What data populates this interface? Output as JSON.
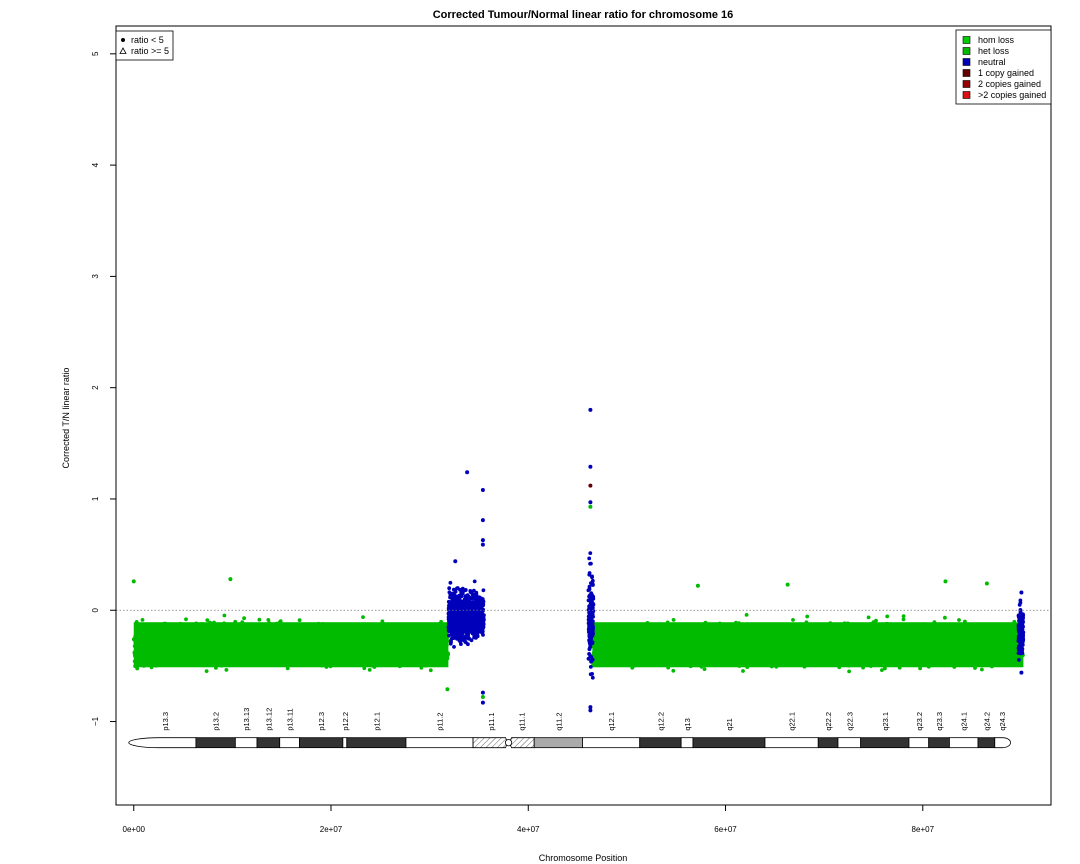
{
  "chart_data": {
    "type": "scatter",
    "title": "Corrected Tumour/Normal linear ratio for chromosome  16",
    "xlabel": "Chromosome Position",
    "ylabel": "Corrected T/N linear ratio",
    "xlim": [
      -1800000,
      93000000
    ],
    "ylim": [
      -1.75,
      5.25
    ],
    "x_ticks": [
      {
        "value": 0,
        "label": "0e+00"
      },
      {
        "value": 20000000,
        "label": "2e+07"
      },
      {
        "value": 40000000,
        "label": "4e+07"
      },
      {
        "value": 60000000,
        "label": "6e+07"
      },
      {
        "value": 80000000,
        "label": "8e+07"
      }
    ],
    "y_ticks": [
      {
        "value": -1,
        "label": "−1"
      },
      {
        "value": 0,
        "label": "0"
      },
      {
        "value": 1,
        "label": "1"
      },
      {
        "value": 2,
        "label": "2"
      },
      {
        "value": 3,
        "label": "3"
      },
      {
        "value": 4,
        "label": "4"
      },
      {
        "value": 5,
        "label": "5"
      }
    ],
    "reference_line": {
      "y": 0,
      "style": "dotted"
    },
    "grid": false,
    "shape_legend": {
      "position": "top-left",
      "items": [
        {
          "symbol": "dot",
          "label": "ratio < 5"
        },
        {
          "symbol": "triangle",
          "label": "ratio >= 5"
        }
      ]
    },
    "color_legend": {
      "position": "top-right",
      "items": [
        {
          "label": "hom loss",
          "color": "#00cc00"
        },
        {
          "label": "het loss",
          "color": "#00bb00"
        },
        {
          "label": "neutral",
          "color": "#0000bb"
        },
        {
          "label": "1 copy gained",
          "color": "#660000"
        },
        {
          "label": "2 copies gained",
          "color": "#990000"
        },
        {
          "label": ">2 copies gained",
          "color": "#dd1111"
        }
      ]
    },
    "series": [
      {
        "name": "het loss",
        "color": "#00bb00",
        "x_start": 0,
        "x_end": 31900000,
        "y_center": -0.31,
        "y_spread": 0.27,
        "note": "dense band"
      },
      {
        "name": "het loss",
        "color": "#00bb00",
        "x_start": 46500000,
        "x_end": 90200000,
        "y_center": -0.31,
        "y_spread": 0.27,
        "note": "dense band"
      },
      {
        "name": "neutral",
        "color": "#0000bb",
        "x_start": 31900000,
        "x_end": 35500000,
        "y_center": -0.05,
        "y_spread": 0.35
      },
      {
        "name": "neutral",
        "color": "#0000bb",
        "x_start": 46100000,
        "x_end": 46600000,
        "y_center": -0.05,
        "y_spread": 0.8
      },
      {
        "name": "neutral",
        "color": "#0000bb",
        "x_start": 89700000,
        "x_end": 90200000,
        "y_center": -0.2,
        "y_spread": 0.35
      }
    ],
    "notable_points": [
      {
        "x": 0,
        "y": 0.26,
        "color": "#00bb00"
      },
      {
        "x": 9800000,
        "y": 0.28,
        "color": "#00bb00"
      },
      {
        "x": 31800000,
        "y": -0.71,
        "color": "#00bb00"
      },
      {
        "x": 32600000,
        "y": 0.44,
        "color": "#0000bb"
      },
      {
        "x": 33800000,
        "y": 1.24,
        "color": "#0000bb"
      },
      {
        "x": 35400000,
        "y": 1.08,
        "color": "#0000bb"
      },
      {
        "x": 35400000,
        "y": 0.81,
        "color": "#0000bb"
      },
      {
        "x": 35400000,
        "y": 0.63,
        "color": "#0000bb"
      },
      {
        "x": 35400000,
        "y": 0.59,
        "color": "#0000bb"
      },
      {
        "x": 35400000,
        "y": -0.74,
        "color": "#0000bb"
      },
      {
        "x": 35400000,
        "y": -0.83,
        "color": "#0000bb"
      },
      {
        "x": 35400000,
        "y": -0.78,
        "color": "#00bb00"
      },
      {
        "x": 46300000,
        "y": 1.8,
        "color": "#0000bb"
      },
      {
        "x": 46300000,
        "y": 1.29,
        "color": "#0000bb"
      },
      {
        "x": 46300000,
        "y": 1.12,
        "color": "#660000"
      },
      {
        "x": 46300000,
        "y": 0.97,
        "color": "#0000bb"
      },
      {
        "x": 46300000,
        "y": 0.93,
        "color": "#00bb00"
      },
      {
        "x": 46300000,
        "y": -0.87,
        "color": "#0000bb"
      },
      {
        "x": 46300000,
        "y": -0.9,
        "color": "#0000bb"
      },
      {
        "x": 57200000,
        "y": 0.22,
        "color": "#00bb00"
      },
      {
        "x": 66300000,
        "y": 0.23,
        "color": "#00bb00"
      },
      {
        "x": 82300000,
        "y": 0.26,
        "color": "#00bb00"
      },
      {
        "x": 86500000,
        "y": 0.24,
        "color": "#00bb00"
      },
      {
        "x": 90000000,
        "y": 0.16,
        "color": "#0000bb"
      },
      {
        "x": 90000000,
        "y": -0.56,
        "color": "#0000bb"
      }
    ],
    "ideogram": {
      "y": -1.19,
      "centromere_x": 38000000,
      "bands": [
        {
          "name": "p13.3",
          "start": 0,
          "end": 6300000,
          "stain": "gneg"
        },
        {
          "name": "p13.2",
          "start": 6300000,
          "end": 10300000,
          "stain": "gpos50"
        },
        {
          "name": "p13.13",
          "start": 10300000,
          "end": 12500000,
          "stain": "gneg"
        },
        {
          "name": "p13.12",
          "start": 12500000,
          "end": 14800000,
          "stain": "gpos50"
        },
        {
          "name": "p13.11",
          "start": 14800000,
          "end": 16800000,
          "stain": "gneg"
        },
        {
          "name": "p12.3",
          "start": 16800000,
          "end": 21200000,
          "stain": "gpos50"
        },
        {
          "name": "p12.2",
          "start": 21200000,
          "end": 21600000,
          "stain": "gneg"
        },
        {
          "name": "p12.1",
          "start": 21600000,
          "end": 27600000,
          "stain": "gpos50"
        },
        {
          "name": "p11.2",
          "start": 27600000,
          "end": 34400000,
          "stain": "gneg"
        },
        {
          "name": "p11.1",
          "start": 34400000,
          "end": 38000000,
          "stain": "acen"
        },
        {
          "name": "q11.1",
          "start": 38000000,
          "end": 40600000,
          "stain": "acen"
        },
        {
          "name": "q11.2",
          "start": 40600000,
          "end": 45500000,
          "stain": "gvar"
        },
        {
          "name": "q12.1",
          "start": 45500000,
          "end": 51300000,
          "stain": "gneg"
        },
        {
          "name": "q12.2",
          "start": 51300000,
          "end": 55500000,
          "stain": "gpos50"
        },
        {
          "name": "q13",
          "start": 55500000,
          "end": 56700000,
          "stain": "gneg"
        },
        {
          "name": "q21",
          "start": 56700000,
          "end": 64000000,
          "stain": "gpos50"
        },
        {
          "name": "q22.1",
          "start": 64000000,
          "end": 69400000,
          "stain": "gneg"
        },
        {
          "name": "q22.2",
          "start": 69400000,
          "end": 71400000,
          "stain": "gpos50"
        },
        {
          "name": "q22.3",
          "start": 71400000,
          "end": 73700000,
          "stain": "gneg"
        },
        {
          "name": "q23.1",
          "start": 73700000,
          "end": 78600000,
          "stain": "gpos50"
        },
        {
          "name": "q23.2",
          "start": 78600000,
          "end": 80600000,
          "stain": "gneg"
        },
        {
          "name": "q23.3",
          "start": 80600000,
          "end": 82700000,
          "stain": "gpos50"
        },
        {
          "name": "q24.1",
          "start": 82700000,
          "end": 85600000,
          "stain": "gneg"
        },
        {
          "name": "q24.2",
          "start": 85600000,
          "end": 87300000,
          "stain": "gpos50"
        },
        {
          "name": "q24.3",
          "start": 87300000,
          "end": 88800000,
          "stain": "gneg"
        }
      ]
    }
  }
}
